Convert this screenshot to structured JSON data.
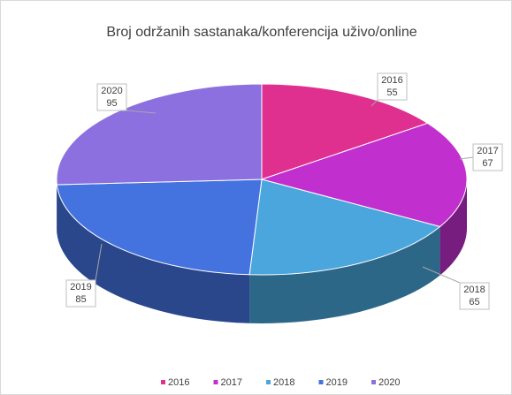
{
  "chart_data": {
    "type": "pie3d",
    "title": "Broj održanih sastanaka/konferencija uživo/online",
    "categories": [
      "2016",
      "2017",
      "2018",
      "2019",
      "2020"
    ],
    "values": [
      55,
      67,
      65,
      85,
      95
    ],
    "colors": [
      "#e0308f",
      "#c22fcf",
      "#4aa6dc",
      "#4473e0",
      "#8d70e0"
    ],
    "legend": "bottom"
  }
}
